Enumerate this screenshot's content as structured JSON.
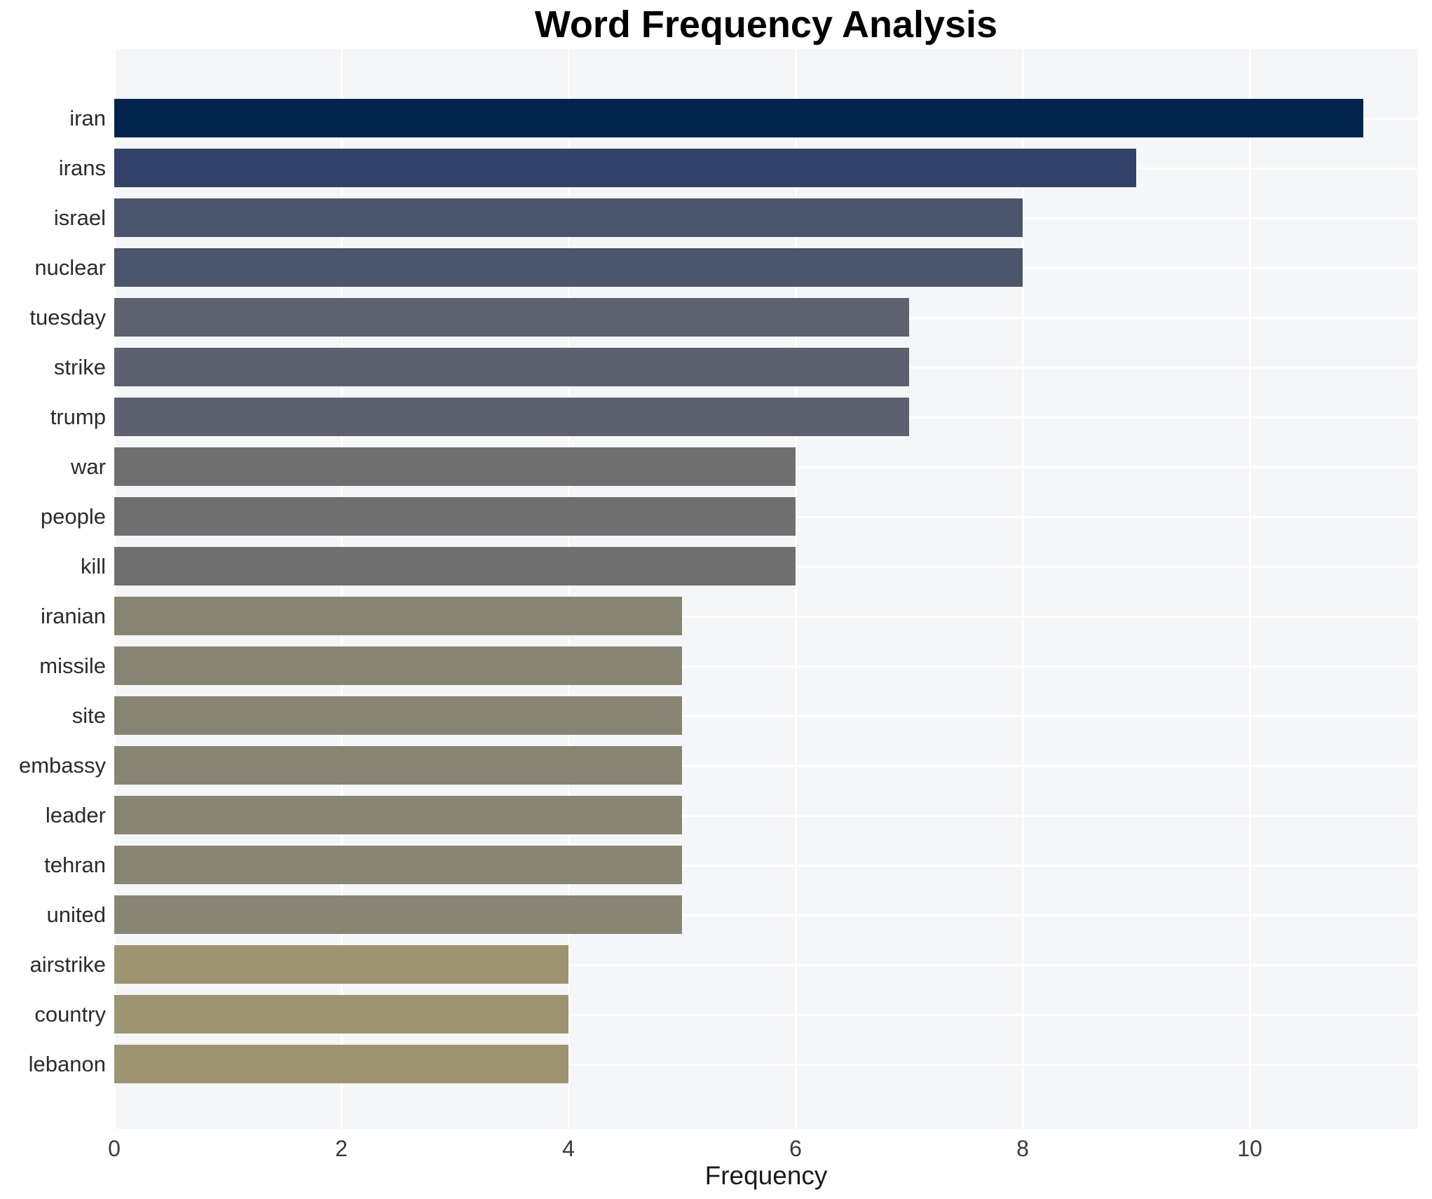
{
  "chart_data": {
    "type": "bar",
    "orientation": "horizontal",
    "title": "Word Frequency Analysis",
    "xlabel": "Frequency",
    "ylabel": "",
    "categories": [
      "iran",
      "irans",
      "israel",
      "nuclear",
      "tuesday",
      "strike",
      "trump",
      "war",
      "people",
      "kill",
      "iranian",
      "missile",
      "site",
      "embassy",
      "leader",
      "tehran",
      "united",
      "airstrike",
      "country",
      "lebanon"
    ],
    "values": [
      11,
      9,
      8,
      8,
      7,
      7,
      7,
      6,
      6,
      6,
      5,
      5,
      5,
      5,
      5,
      5,
      5,
      4,
      4,
      4
    ],
    "bar_colors": [
      "#01234e",
      "#32436a",
      "#4b556e",
      "#4b556e",
      "#5e616e",
      "#5d606f",
      "#5d606f",
      "#6f6f6f",
      "#6f6f6f",
      "#6f6f6f",
      "#878572",
      "#878572",
      "#878572",
      "#878572",
      "#878572",
      "#878572",
      "#888673",
      "#9c9470",
      "#9c9470",
      "#9c9470"
    ],
    "xticks": [
      "0",
      "2",
      "4",
      "6",
      "8",
      "10"
    ],
    "xtick_values": [
      0,
      2,
      4,
      6,
      8,
      10
    ],
    "xlim": [
      0,
      11.48
    ],
    "grid": "on",
    "gridline_color": "#ffffff",
    "plot_background": "#f5f6f7",
    "figure_background": "#ffffff",
    "legend": "none",
    "colormap": "cividis-reversed-by-value"
  }
}
